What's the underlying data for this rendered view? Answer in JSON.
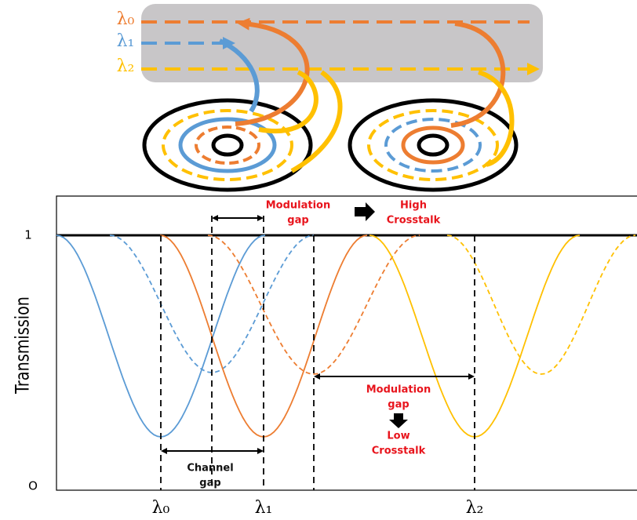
{
  "waveguide_labels": [
    "λ₀",
    "λ₁",
    "λ₂"
  ],
  "plot": {
    "y_axis_label": "Transmission",
    "y_tick_labels": [
      "1",
      "O"
    ],
    "x_labels": [
      "λ₀",
      "λ₁",
      "λ₂"
    ],
    "annotations": {
      "modulation_gap_high": [
        "Modulation",
        "gap"
      ],
      "high_crosstalk": [
        "High",
        "Crosstalk"
      ],
      "modulation_gap_low": [
        "Modulation",
        "gap"
      ],
      "low_crosstalk": [
        "Low",
        "Crosstalk"
      ],
      "channel_gap": [
        "Channel",
        "gap"
      ]
    }
  }
}
